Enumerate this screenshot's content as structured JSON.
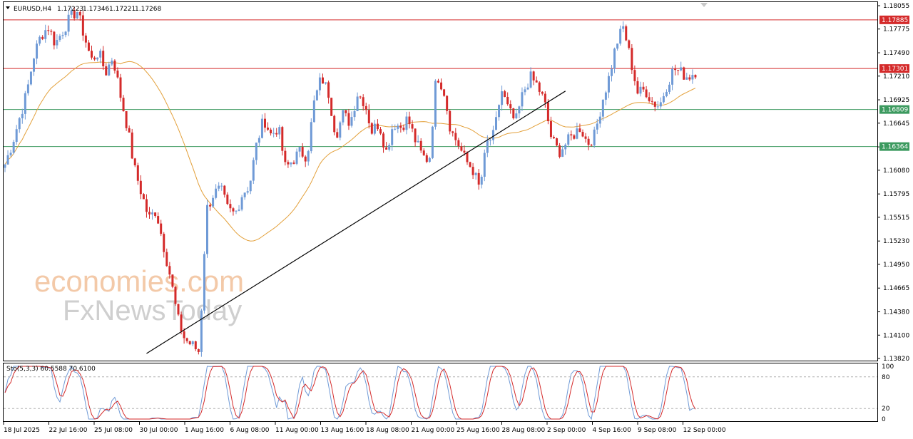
{
  "header": {
    "menu_icon": "triangle-down-icon",
    "symbol": "EURUSD,H4",
    "open": "1.17223",
    "high": "1.17346",
    "low": "1.17221",
    "close": "1.17268"
  },
  "watermark": {
    "line1": "economies.com",
    "line2": "FxNewsToday"
  },
  "colors": {
    "bull": "#6f9ad6",
    "bear": "#d42a2a",
    "ma": "#e3a03a",
    "resistance": "#d42a2a",
    "support": "#3c9a5f",
    "trendline": "#000000",
    "stoch_main": "#6f9ad6",
    "stoch_signal": "#d42a2a"
  },
  "chart_data": [
    {
      "type": "candlestick",
      "title": "EURUSD,H4",
      "ylim": [
        1.1382,
        1.18055
      ],
      "y_ticks": [
        "1.18055",
        "1.17775",
        "1.17490",
        "1.17210",
        "1.16925",
        "1.16645",
        "1.16360",
        "1.16080",
        "1.15795",
        "1.15515",
        "1.15230",
        "1.14950",
        "1.14665",
        "1.14380",
        "1.14100",
        "1.13820"
      ],
      "x_ticks": [
        "18 Jul 2025",
        "22 Jul 16:00",
        "25 Jul 08:00",
        "30 Jul 00:00",
        "1 Aug 16:00",
        "6 Aug 08:00",
        "11 Aug 00:00",
        "13 Aug 16:00",
        "18 Aug 08:00",
        "21 Aug 00:00",
        "25 Aug 16:00",
        "28 Aug 08:00",
        "2 Sep 00:00",
        "4 Sep 16:00",
        "9 Sep 08:00",
        "12 Sep 00:00"
      ],
      "price_levels": [
        {
          "label": "1.17885",
          "value": 1.17885,
          "kind": "resistance"
        },
        {
          "label": "1.17301",
          "value": 1.17301,
          "kind": "resistance"
        },
        {
          "label": "1.16809",
          "value": 1.16809,
          "kind": "support"
        },
        {
          "label": "1.16364",
          "value": 1.16364,
          "kind": "support"
        }
      ],
      "trendline": {
        "from": {
          "bar": 49,
          "price": 1.1388
        },
        "to": {
          "bar": 194,
          "price": 1.1703
        }
      },
      "ohlc_anchor_closes": [
        1.1615,
        1.164,
        1.167,
        1.17,
        1.1745,
        1.177,
        1.178,
        1.176,
        1.1775,
        1.179,
        1.18,
        1.177,
        1.174,
        1.175,
        1.1725,
        1.1745,
        1.17,
        1.166,
        1.161,
        1.158,
        1.155,
        1.156,
        1.152,
        1.148,
        1.143,
        1.1405,
        1.1398,
        1.139,
        1.156,
        1.158,
        1.1585,
        1.156,
        1.1555,
        1.158,
        1.159,
        1.164,
        1.167,
        1.165,
        1.166,
        1.161,
        1.162,
        1.163,
        1.1625,
        1.169,
        1.172,
        1.17,
        1.165,
        1.1675,
        1.1665,
        1.17,
        1.169,
        1.1655,
        1.1665,
        1.163,
        1.1665,
        1.166,
        1.167,
        1.1645,
        1.1625,
        1.162,
        1.1725,
        1.1705,
        1.1655,
        1.164,
        1.162,
        1.161,
        1.1585,
        1.164,
        1.165,
        1.1705,
        1.168,
        1.1665,
        1.17,
        1.172,
        1.171,
        1.169,
        1.1645,
        1.163,
        1.164,
        1.165,
        1.166,
        1.164,
        1.165,
        1.169,
        1.172,
        1.176,
        1.178,
        1.174,
        1.17,
        1.1705,
        1.169,
        1.1685,
        1.171,
        1.173,
        1.1725,
        1.172,
        1.1727
      ],
      "moving_average": {
        "color": "#e3a03a"
      },
      "stochastic": {
        "label": "Sto(5,3,3) 60.5588 70.6100",
        "main": 60.5588,
        "signal": 70.61,
        "y_ticks": [
          "100",
          "80",
          "20",
          "0"
        ],
        "levels": [
          80,
          20
        ]
      }
    }
  ]
}
